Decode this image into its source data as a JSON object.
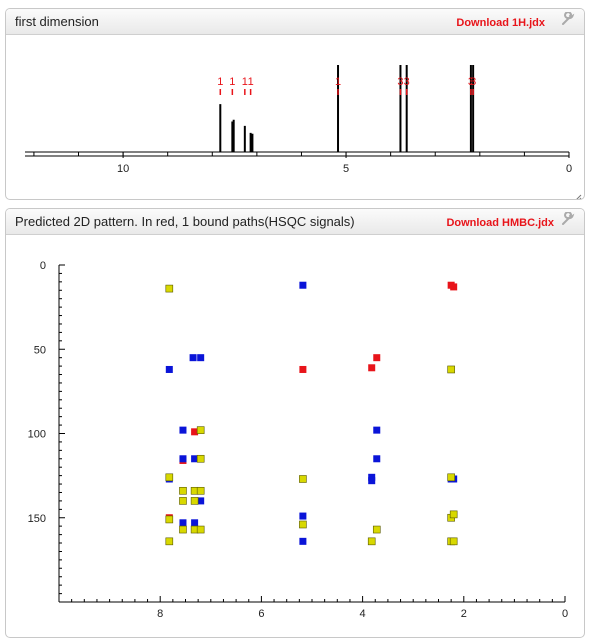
{
  "panel1": {
    "title": "first dimension",
    "download_label": "Download 1H.jdx",
    "settings_icon": "wrench-icon",
    "resize_icon": "resize-grip-icon"
  },
  "panel2": {
    "title": "Predicted 2D pattern. In red, 1 bound paths(HSQC signals)",
    "download_label": "Download HMBC.jdx",
    "settings_icon": "wrench-icon"
  },
  "colors": {
    "hsqc": "#e8141a",
    "hmbc_blue": "#0a14d8",
    "hmbc_yellow": "#d8d800",
    "link": "#e8141a",
    "axis": "#000000"
  },
  "chart_data": [
    {
      "type": "line",
      "title": "",
      "xlabel": "",
      "ylabel": "",
      "xlim": [
        12.2,
        0
      ],
      "x_ticks": [
        "10",
        "5",
        "0"
      ],
      "x_tick_values": [
        10,
        5,
        0
      ],
      "peaks": [
        {
          "ppm": 7.82,
          "height": 0.55,
          "label": "1"
        },
        {
          "ppm": 7.55,
          "height": 0.35,
          "label": "1"
        },
        {
          "ppm": 7.52,
          "height": 0.37,
          "label": ""
        },
        {
          "ppm": 7.27,
          "height": 0.3,
          "label": "1"
        },
        {
          "ppm": 7.14,
          "height": 0.22,
          "label": "1"
        },
        {
          "ppm": 7.1,
          "height": 0.21,
          "label": ""
        },
        {
          "ppm": 5.18,
          "height": 1.0,
          "label": "1"
        },
        {
          "ppm": 3.78,
          "height": 1.0,
          "label": "3"
        },
        {
          "ppm": 3.64,
          "height": 1.0,
          "label": "3"
        },
        {
          "ppm": 2.2,
          "height": 1.0,
          "label": "3"
        },
        {
          "ppm": 2.15,
          "height": 1.0,
          "label": "3"
        }
      ]
    },
    {
      "type": "scatter",
      "title": "Predicted 2D pattern. In red, 1 bound paths(HSQC signals)",
      "xlabel": "",
      "ylabel": "",
      "xlim": [
        10,
        0
      ],
      "ylim": [
        0,
        200
      ],
      "x_ticks": [
        "8",
        "6",
        "4",
        "2",
        "0"
      ],
      "x_tick_values": [
        8,
        6,
        4,
        2,
        0
      ],
      "y_ticks": [
        "0",
        "50",
        "100",
        "150"
      ],
      "y_tick_values": [
        0,
        50,
        100,
        150
      ],
      "series": [
        {
          "color": "#e8141a",
          "points": [
            [
              2.25,
              12
            ],
            [
              2.2,
              13
            ],
            [
              5.18,
              62
            ],
            [
              3.72,
              55
            ],
            [
              3.82,
              61
            ],
            [
              7.55,
              116
            ],
            [
              7.32,
              99
            ],
            [
              7.82,
              150
            ]
          ]
        },
        {
          "color": "#0a14d8",
          "points": [
            [
              5.18,
              12
            ],
            [
              7.82,
              62
            ],
            [
              7.35,
              55
            ],
            [
              7.2,
              55
            ],
            [
              2.25,
              62
            ],
            [
              7.55,
              98
            ],
            [
              3.72,
              98
            ],
            [
              7.55,
              115
            ],
            [
              7.32,
              115
            ],
            [
              3.72,
              115
            ],
            [
              7.82,
              127
            ],
            [
              3.82,
              126
            ],
            [
              3.82,
              128
            ],
            [
              2.25,
              127
            ],
            [
              2.2,
              127
            ],
            [
              7.2,
              140
            ],
            [
              5.18,
              149
            ],
            [
              7.55,
              153
            ],
            [
              7.32,
              153
            ],
            [
              5.18,
              164
            ]
          ]
        },
        {
          "color": "#d8d800",
          "points": [
            [
              7.82,
              14
            ],
            [
              2.25,
              62
            ],
            [
              7.2,
              98
            ],
            [
              7.2,
              115
            ],
            [
              7.82,
              126
            ],
            [
              5.18,
              127
            ],
            [
              2.25,
              126
            ],
            [
              7.55,
              134
            ],
            [
              7.32,
              134
            ],
            [
              7.2,
              134
            ],
            [
              7.55,
              140
            ],
            [
              7.32,
              140
            ],
            [
              5.18,
              154
            ],
            [
              7.82,
              151
            ],
            [
              2.25,
              150
            ],
            [
              2.2,
              148
            ],
            [
              7.55,
              157
            ],
            [
              7.32,
              157
            ],
            [
              7.2,
              157
            ],
            [
              3.72,
              157
            ],
            [
              7.82,
              164
            ],
            [
              3.82,
              164
            ],
            [
              2.25,
              164
            ],
            [
              2.2,
              164
            ]
          ]
        }
      ]
    }
  ]
}
